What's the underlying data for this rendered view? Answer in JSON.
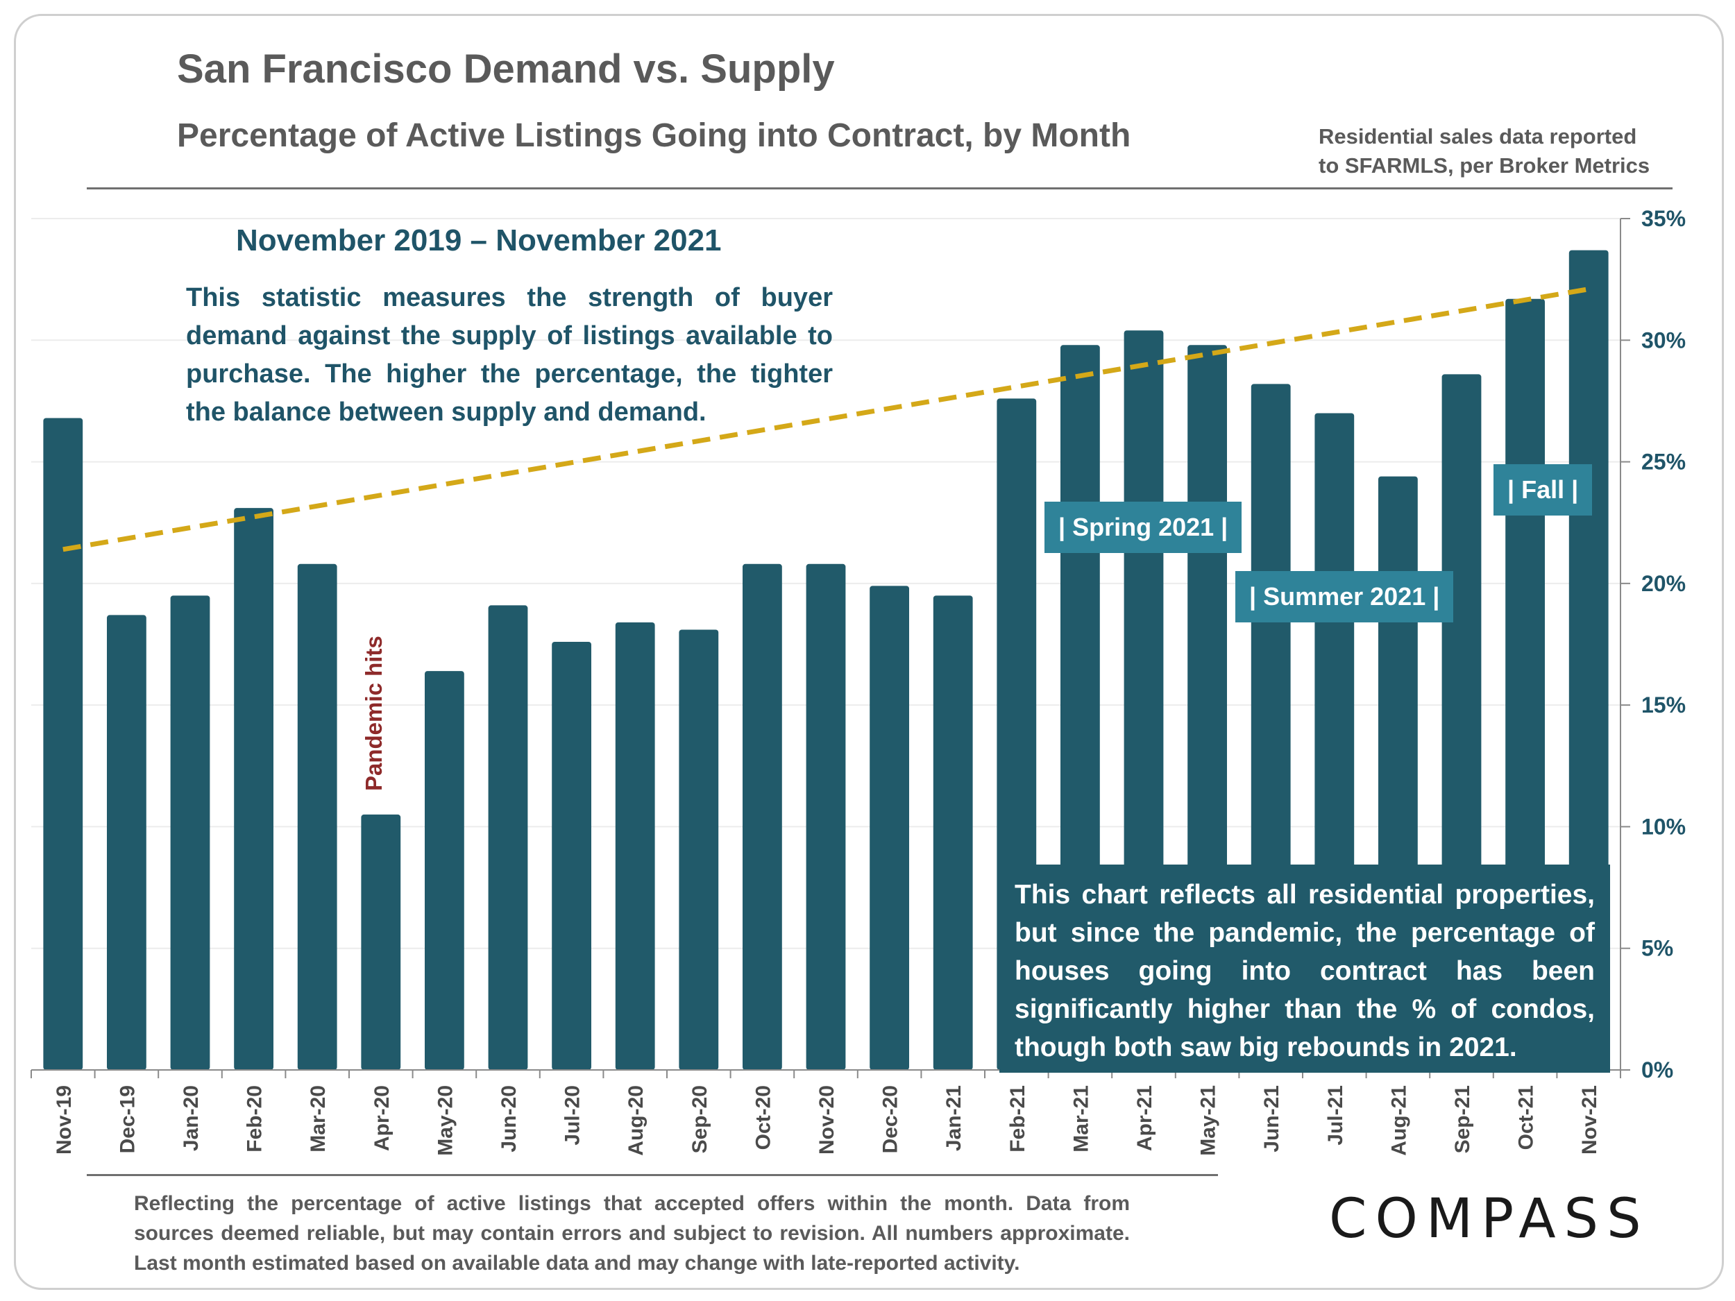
{
  "header": {
    "title": "San Francisco Demand vs. Supply",
    "subtitle": "Percentage of Active Listings Going into Contract, by Month",
    "source_line1": "Residential sales data reported",
    "source_line2": "to SFARMLS, per Broker Metrics"
  },
  "annotations": {
    "date_range": "November 2019 – November 2021",
    "description_lines": [
      "This statistic measures the strength of buyer",
      "demand against the supply of listings available to",
      "purchase. The higher the percentage, the tighter",
      "the balance between supply and demand."
    ],
    "pandemic": "Pandemic hits",
    "spring": "| Spring 2021 |",
    "summer": "| Summer 2021 |",
    "fall": "| Fall |",
    "note_lines": [
      "This chart reflects all residential properties,",
      "but since the pandemic, the percentage of",
      "houses going into contract has been",
      "significantly higher than the % of condos,",
      "though both saw big rebounds in 2021."
    ]
  },
  "footer": {
    "lines": [
      "Reflecting the percentage of active listings that accepted offers within the month. Data from",
      "sources deemed reliable, but may contain errors and subject to revision. All numbers approximate.",
      "Last month estimated based on available data and may change with late-reported activity."
    ],
    "logo": "COMPASS"
  },
  "colors": {
    "bar": "#215a6a",
    "trend": "#d4a818",
    "axis_text": "#1f5468",
    "season_box": "#2f8399"
  },
  "chart_data": {
    "type": "bar",
    "title": "Percentage of Active Listings Going into Contract, by Month",
    "categories": [
      "Nov-19",
      "Dec-19",
      "Jan-20",
      "Feb-20",
      "Mar-20",
      "Apr-20",
      "May-20",
      "Jun-20",
      "Jul-20",
      "Aug-20",
      "Sep-20",
      "Oct-20",
      "Nov-20",
      "Dec-20",
      "Jan-21",
      "Feb-21",
      "Mar-21",
      "Apr-21",
      "May-21",
      "Jun-21",
      "Jul-21",
      "Aug-21",
      "Sep-21",
      "Oct-21",
      "Nov-21"
    ],
    "values": [
      26.8,
      18.7,
      19.5,
      23.1,
      20.8,
      10.5,
      16.4,
      19.1,
      17.6,
      18.4,
      18.1,
      20.8,
      20.8,
      19.9,
      19.5,
      27.6,
      29.8,
      30.4,
      29.8,
      28.2,
      27.0,
      24.4,
      28.6,
      31.7,
      33.7
    ],
    "trendline": {
      "type": "linear",
      "start": 21.4,
      "end": 32.1
    },
    "y_axis": {
      "position": "right",
      "min": 0,
      "max": 35,
      "step": 5,
      "tick_labels": [
        "0%",
        "5%",
        "10%",
        "15%",
        "20%",
        "25%",
        "30%",
        "35%"
      ]
    },
    "grid": true,
    "xlabel": "",
    "ylabel": ""
  }
}
